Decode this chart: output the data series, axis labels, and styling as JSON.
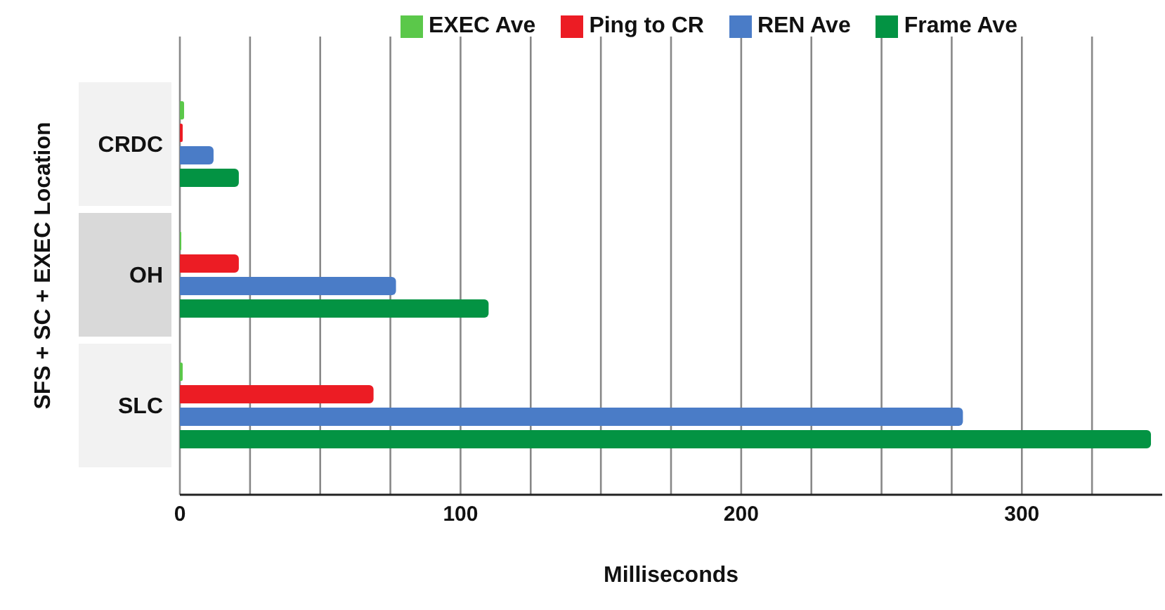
{
  "chart_data": {
    "type": "bar",
    "orientation": "horizontal",
    "xlabel": "Milliseconds",
    "ylabel": "SFS + SC + EXEC Location",
    "categories": [
      "CRDC",
      "OH",
      "SLC"
    ],
    "series": [
      {
        "name": "EXEC Ave",
        "color": "#5bc84a",
        "values": [
          1.5,
          0.5,
          1
        ]
      },
      {
        "name": "Ping to CR",
        "color": "#ec1c24",
        "values": [
          1,
          21,
          69
        ]
      },
      {
        "name": "REN Ave",
        "color": "#4a7cc7",
        "values": [
          12,
          77,
          279
        ]
      },
      {
        "name": "Frame Ave",
        "color": "#039343",
        "values": [
          21,
          110,
          346
        ]
      }
    ],
    "xlim": [
      0,
      350
    ],
    "xticks": [
      0,
      {
        "value": 25,
        "label": null
      },
      {
        "value": 50,
        "label": null
      },
      {
        "value": 75,
        "label": null
      },
      100,
      {
        "value": 125,
        "label": null
      },
      {
        "value": 150,
        "label": null
      },
      {
        "value": 175,
        "label": null
      },
      200,
      {
        "value": 225,
        "label": null
      },
      {
        "value": 250,
        "label": null
      },
      {
        "value": 275,
        "label": null
      },
      300,
      {
        "value": 325,
        "label": null
      }
    ],
    "grid": "x",
    "legend": "top"
  }
}
